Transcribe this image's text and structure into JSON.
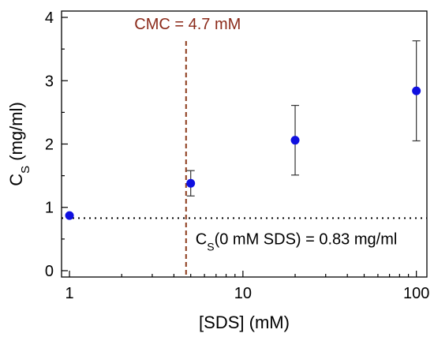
{
  "chart_data": {
    "type": "scatter",
    "title": "",
    "xlabel": "[SDS] (mM)",
    "ylabel": {
      "main": "C",
      "sub": "S",
      "rest": " (mg/ml)"
    },
    "xscale": "log",
    "xlim": [
      0.9,
      115
    ],
    "ylim": [
      -0.1,
      4.1
    ],
    "grid": false,
    "legend": "none",
    "x_ticks": [
      {
        "value": 1,
        "label": "1"
      },
      {
        "value": 10,
        "label": "10"
      },
      {
        "value": 100,
        "label": "100"
      }
    ],
    "y_ticks": [
      {
        "value": 0,
        "label": "0"
      },
      {
        "value": 1,
        "label": "1"
      },
      {
        "value": 2,
        "label": "2"
      },
      {
        "value": 3,
        "label": "3"
      },
      {
        "value": 4,
        "label": "4"
      }
    ],
    "series": [
      {
        "color": "#1010e0",
        "points": [
          {
            "x": 1,
            "y": 0.87,
            "err": 0
          },
          {
            "x": 5,
            "y": 1.38,
            "err": 0.2
          },
          {
            "x": 20,
            "y": 2.06,
            "err": 0.55
          },
          {
            "x": 100,
            "y": 2.84,
            "err": 0.79
          }
        ]
      }
    ],
    "reference_lines": [
      {
        "orientation": "vertical",
        "value": 4.7,
        "style": "dashed",
        "color": "#8b3a1a"
      },
      {
        "orientation": "horizontal",
        "value": 0.83,
        "style": "dotted",
        "color": "#000000"
      }
    ],
    "annotations": {
      "cmc": {
        "text": "CMC = 4.7 mM",
        "color": "#8b2a1a",
        "x": 4.7
      },
      "baseline": {
        "main": "C",
        "sub": "S",
        "rest": "(0 mM SDS) = 0.83 mg/ml"
      }
    }
  }
}
